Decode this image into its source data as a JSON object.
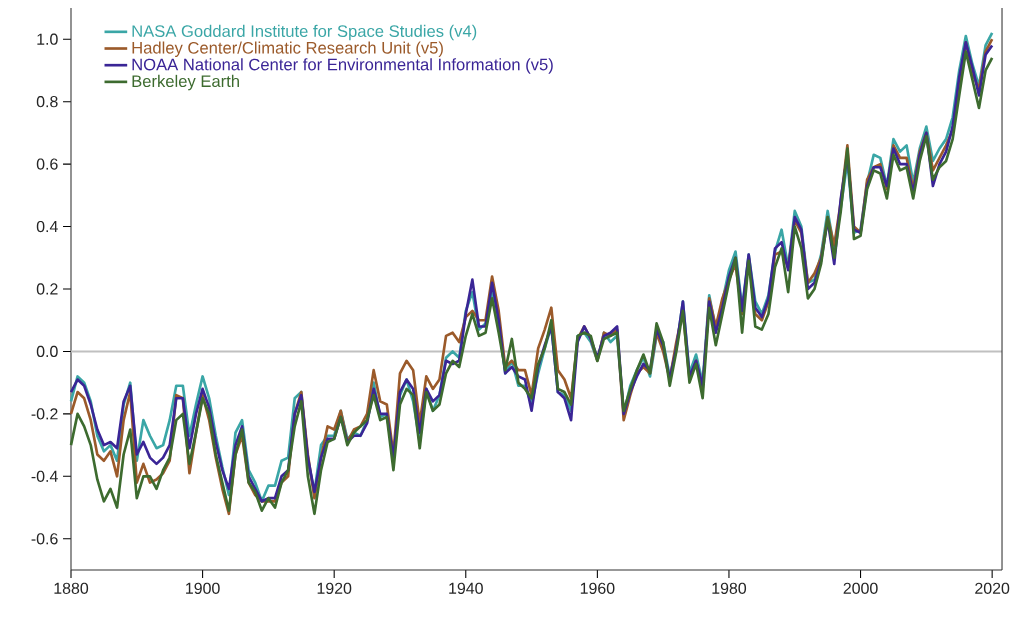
{
  "chart_data": {
    "type": "line",
    "x": [
      1880,
      1881,
      1882,
      1883,
      1884,
      1885,
      1886,
      1887,
      1888,
      1889,
      1890,
      1891,
      1892,
      1893,
      1894,
      1895,
      1896,
      1897,
      1898,
      1899,
      1900,
      1901,
      1902,
      1903,
      1904,
      1905,
      1906,
      1907,
      1908,
      1909,
      1910,
      1911,
      1912,
      1913,
      1914,
      1915,
      1916,
      1917,
      1918,
      1919,
      1920,
      1921,
      1922,
      1923,
      1924,
      1925,
      1926,
      1927,
      1928,
      1929,
      1930,
      1931,
      1932,
      1933,
      1934,
      1935,
      1936,
      1937,
      1938,
      1939,
      1940,
      1941,
      1942,
      1943,
      1944,
      1945,
      1946,
      1947,
      1948,
      1949,
      1950,
      1951,
      1952,
      1953,
      1954,
      1955,
      1956,
      1957,
      1958,
      1959,
      1960,
      1961,
      1962,
      1963,
      1964,
      1965,
      1966,
      1967,
      1968,
      1969,
      1970,
      1971,
      1972,
      1973,
      1974,
      1975,
      1976,
      1977,
      1978,
      1979,
      1980,
      1981,
      1982,
      1983,
      1984,
      1985,
      1986,
      1987,
      1988,
      1989,
      1990,
      1991,
      1992,
      1993,
      1994,
      1995,
      1996,
      1997,
      1998,
      1999,
      2000,
      2001,
      2002,
      2003,
      2004,
      2005,
      2006,
      2007,
      2008,
      2009,
      2010,
      2011,
      2012,
      2013,
      2014,
      2015,
      2016,
      2017,
      2018,
      2019,
      2020
    ],
    "series": [
      {
        "name": "NASA Goddard Institute for Space Studies (v4)",
        "color": "#3aa6a6",
        "values": [
          -0.16,
          -0.08,
          -0.1,
          -0.16,
          -0.27,
          -0.32,
          -0.3,
          -0.35,
          -0.17,
          -0.1,
          -0.35,
          -0.22,
          -0.27,
          -0.31,
          -0.3,
          -0.22,
          -0.11,
          -0.11,
          -0.27,
          -0.17,
          -0.08,
          -0.15,
          -0.27,
          -0.37,
          -0.46,
          -0.26,
          -0.22,
          -0.38,
          -0.42,
          -0.48,
          -0.43,
          -0.43,
          -0.35,
          -0.34,
          -0.15,
          -0.13,
          -0.35,
          -0.45,
          -0.3,
          -0.27,
          -0.27,
          -0.19,
          -0.28,
          -0.26,
          -0.27,
          -0.22,
          -0.1,
          -0.21,
          -0.2,
          -0.35,
          -0.14,
          -0.09,
          -0.16,
          -0.29,
          -0.12,
          -0.19,
          -0.14,
          -0.02,
          0.0,
          -0.02,
          0.13,
          0.19,
          0.07,
          0.09,
          0.2,
          0.09,
          -0.07,
          -0.03,
          -0.11,
          -0.11,
          -0.17,
          -0.07,
          0.01,
          0.08,
          -0.13,
          -0.14,
          -0.19,
          0.05,
          0.06,
          0.03,
          -0.03,
          0.06,
          0.03,
          0.05,
          -0.2,
          -0.11,
          -0.06,
          -0.02,
          -0.08,
          0.05,
          0.03,
          -0.08,
          0.01,
          0.16,
          -0.07,
          -0.01,
          -0.1,
          0.18,
          0.07,
          0.16,
          0.26,
          0.32,
          0.14,
          0.31,
          0.16,
          0.12,
          0.18,
          0.32,
          0.39,
          0.27,
          0.45,
          0.4,
          0.22,
          0.23,
          0.31,
          0.45,
          0.33,
          0.46,
          0.61,
          0.38,
          0.39,
          0.54,
          0.63,
          0.62,
          0.53,
          0.68,
          0.64,
          0.66,
          0.54,
          0.65,
          0.72,
          0.61,
          0.65,
          0.68,
          0.75,
          0.9,
          1.01,
          0.92,
          0.85,
          0.98,
          1.02
        ]
      },
      {
        "name": "Hadley Center/Climatic Research Unit (v5)",
        "color": "#9b5a2a",
        "values": [
          -0.2,
          -0.13,
          -0.15,
          -0.22,
          -0.33,
          -0.35,
          -0.32,
          -0.4,
          -0.22,
          -0.13,
          -0.42,
          -0.36,
          -0.42,
          -0.41,
          -0.39,
          -0.35,
          -0.14,
          -0.15,
          -0.39,
          -0.26,
          -0.14,
          -0.22,
          -0.34,
          -0.44,
          -0.52,
          -0.33,
          -0.27,
          -0.42,
          -0.46,
          -0.48,
          -0.48,
          -0.48,
          -0.42,
          -0.4,
          -0.2,
          -0.13,
          -0.33,
          -0.47,
          -0.34,
          -0.24,
          -0.25,
          -0.19,
          -0.29,
          -0.25,
          -0.24,
          -0.2,
          -0.06,
          -0.16,
          -0.17,
          -0.33,
          -0.07,
          -0.03,
          -0.06,
          -0.23,
          -0.08,
          -0.12,
          -0.09,
          0.05,
          0.06,
          0.03,
          0.11,
          0.13,
          0.1,
          0.1,
          0.24,
          0.13,
          -0.05,
          -0.03,
          -0.06,
          -0.06,
          -0.14,
          0.01,
          0.07,
          0.14,
          -0.06,
          -0.09,
          -0.15,
          0.04,
          0.08,
          0.04,
          -0.03,
          0.06,
          0.05,
          0.07,
          -0.22,
          -0.14,
          -0.07,
          -0.05,
          -0.07,
          0.06,
          0.0,
          -0.09,
          0.03,
          0.13,
          -0.09,
          -0.03,
          -0.12,
          0.17,
          0.08,
          0.17,
          0.23,
          0.28,
          0.12,
          0.3,
          0.12,
          0.1,
          0.16,
          0.31,
          0.32,
          0.27,
          0.42,
          0.38,
          0.22,
          0.25,
          0.3,
          0.43,
          0.34,
          0.48,
          0.66,
          0.4,
          0.38,
          0.55,
          0.59,
          0.6,
          0.52,
          0.66,
          0.62,
          0.62,
          0.52,
          0.64,
          0.7,
          0.58,
          0.62,
          0.66,
          0.71,
          0.84,
          0.99,
          0.89,
          0.84,
          0.96,
          1.0
        ]
      },
      {
        "name": "NOAA National Center for Environmental Information (v5)",
        "color": "#3a2596",
        "values": [
          -0.13,
          -0.09,
          -0.11,
          -0.17,
          -0.25,
          -0.3,
          -0.29,
          -0.31,
          -0.16,
          -0.11,
          -0.33,
          -0.29,
          -0.34,
          -0.36,
          -0.34,
          -0.3,
          -0.15,
          -0.15,
          -0.31,
          -0.2,
          -0.12,
          -0.18,
          -0.29,
          -0.38,
          -0.44,
          -0.3,
          -0.24,
          -0.4,
          -0.44,
          -0.48,
          -0.47,
          -0.47,
          -0.4,
          -0.38,
          -0.2,
          -0.14,
          -0.34,
          -0.45,
          -0.34,
          -0.28,
          -0.28,
          -0.21,
          -0.29,
          -0.27,
          -0.27,
          -0.23,
          -0.12,
          -0.2,
          -0.2,
          -0.34,
          -0.13,
          -0.09,
          -0.12,
          -0.26,
          -0.12,
          -0.16,
          -0.14,
          -0.03,
          -0.04,
          -0.03,
          0.12,
          0.23,
          0.08,
          0.08,
          0.22,
          0.1,
          -0.07,
          -0.05,
          -0.08,
          -0.09,
          -0.19,
          -0.05,
          0.02,
          0.08,
          -0.13,
          -0.15,
          -0.22,
          0.03,
          0.08,
          0.04,
          -0.02,
          0.05,
          0.06,
          0.08,
          -0.2,
          -0.13,
          -0.08,
          -0.04,
          -0.06,
          0.07,
          0.02,
          -0.09,
          0.01,
          0.16,
          -0.08,
          -0.03,
          -0.11,
          0.16,
          0.06,
          0.14,
          0.24,
          0.3,
          0.13,
          0.31,
          0.14,
          0.11,
          0.17,
          0.33,
          0.35,
          0.26,
          0.43,
          0.39,
          0.2,
          0.22,
          0.29,
          0.42,
          0.28,
          0.49,
          0.63,
          0.39,
          0.38,
          0.53,
          0.59,
          0.59,
          0.53,
          0.65,
          0.6,
          0.6,
          0.51,
          0.63,
          0.7,
          0.53,
          0.6,
          0.64,
          0.72,
          0.88,
          0.99,
          0.91,
          0.82,
          0.95,
          0.98
        ]
      },
      {
        "name": "Berkeley Earth",
        "color": "#3d6b2f",
        "values": [
          -0.3,
          -0.2,
          -0.24,
          -0.3,
          -0.41,
          -0.48,
          -0.44,
          -0.5,
          -0.33,
          -0.25,
          -0.47,
          -0.4,
          -0.4,
          -0.44,
          -0.38,
          -0.34,
          -0.22,
          -0.2,
          -0.36,
          -0.26,
          -0.15,
          -0.2,
          -0.33,
          -0.42,
          -0.51,
          -0.33,
          -0.25,
          -0.42,
          -0.45,
          -0.51,
          -0.47,
          -0.5,
          -0.42,
          -0.38,
          -0.24,
          -0.16,
          -0.4,
          -0.52,
          -0.38,
          -0.29,
          -0.28,
          -0.21,
          -0.3,
          -0.26,
          -0.24,
          -0.22,
          -0.14,
          -0.22,
          -0.21,
          -0.38,
          -0.17,
          -0.12,
          -0.14,
          -0.31,
          -0.13,
          -0.19,
          -0.17,
          -0.07,
          -0.03,
          -0.05,
          0.05,
          0.12,
          0.05,
          0.06,
          0.17,
          0.06,
          -0.06,
          0.04,
          -0.1,
          -0.12,
          -0.15,
          -0.04,
          0.01,
          0.1,
          -0.12,
          -0.13,
          -0.17,
          0.05,
          0.06,
          0.05,
          -0.03,
          0.04,
          0.05,
          0.06,
          -0.19,
          -0.12,
          -0.06,
          -0.01,
          -0.07,
          0.09,
          0.03,
          -0.11,
          0.0,
          0.13,
          -0.1,
          -0.04,
          -0.15,
          0.14,
          0.02,
          0.12,
          0.22,
          0.3,
          0.06,
          0.29,
          0.08,
          0.07,
          0.12,
          0.27,
          0.33,
          0.19,
          0.4,
          0.33,
          0.17,
          0.2,
          0.28,
          0.43,
          0.3,
          0.45,
          0.65,
          0.36,
          0.37,
          0.52,
          0.58,
          0.57,
          0.49,
          0.63,
          0.58,
          0.59,
          0.49,
          0.61,
          0.69,
          0.55,
          0.59,
          0.61,
          0.68,
          0.82,
          0.96,
          0.87,
          0.78,
          0.9,
          0.94
        ]
      }
    ],
    "xlim": [
      1880,
      2021.5
    ],
    "ylim": [
      -0.7,
      1.1
    ],
    "xticks": [
      1880,
      1900,
      1920,
      1940,
      1960,
      1980,
      2000,
      2020
    ],
    "yticks": [
      {
        "value": -0.6,
        "label": "-0.6"
      },
      {
        "value": -0.4,
        "label": "-0.4"
      },
      {
        "value": -0.2,
        "label": "-0.2"
      },
      {
        "value": 0,
        "label": "0.0"
      },
      {
        "value": 0.2,
        "label": "0.2"
      },
      {
        "value": 0.4,
        "label": "0.4"
      },
      {
        "value": 0.6,
        "label": "0.6"
      },
      {
        "value": 0.8,
        "label": "0.8"
      },
      {
        "value": 1.0,
        "label": "1.0"
      }
    ],
    "ref_lines": [
      {
        "axis": "y",
        "value": 0,
        "color": "#c0c0c0"
      }
    ],
    "grid": false,
    "legend": "top left",
    "marker": "none",
    "line_style": "solid"
  }
}
